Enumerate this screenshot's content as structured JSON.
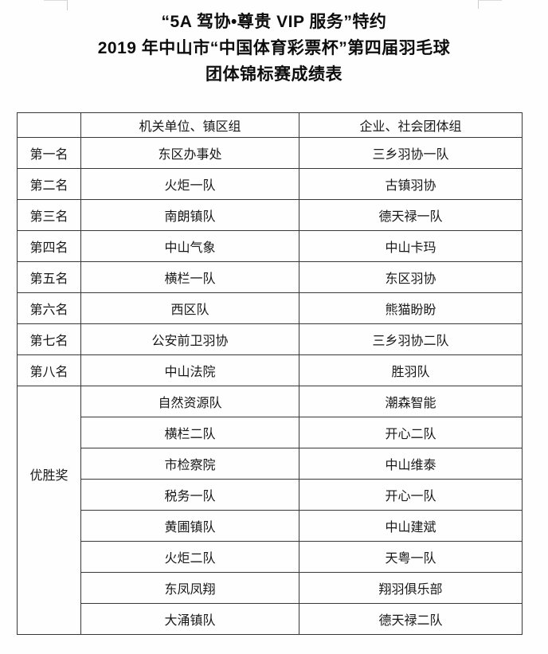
{
  "colors": {
    "page_background": "#fefefe",
    "title_text": "#0d0d0d",
    "table_text": "#181818",
    "table_border": "#383838",
    "corner_mark": "#cccccc"
  },
  "title": {
    "line1": "“5A 驾协•尊贵 VIP 服务”特约",
    "line2": "2019 年中山市“中国体育彩票杯”第四届羽毛球",
    "line3": "团体锦标赛成绩表"
  },
  "table": {
    "headers": [
      "",
      "机关单位、镇区组",
      "企业、社会团体组"
    ],
    "ranked_rows": [
      {
        "rank": "第一名",
        "gov": "东区办事处",
        "ent": "三乡羽协一队"
      },
      {
        "rank": "第二名",
        "gov": "火炬一队",
        "ent": "古镇羽协"
      },
      {
        "rank": "第三名",
        "gov": "南朗镇队",
        "ent": "德天禄一队"
      },
      {
        "rank": "第四名",
        "gov": "中山气象",
        "ent": "中山卡玛"
      },
      {
        "rank": "第五名",
        "gov": "横栏一队",
        "ent": "东区羽协"
      },
      {
        "rank": "第六名",
        "gov": "西区队",
        "ent": "熊猫盼盼"
      },
      {
        "rank": "第七名",
        "gov": "公安前卫羽协",
        "ent": "三乡羽协二队"
      },
      {
        "rank": "第八名",
        "gov": "中山法院",
        "ent": "胜羽队"
      }
    ],
    "winner_label": "优胜奖",
    "winner_rows": [
      {
        "gov": "自然资源队",
        "ent": "潮森智能"
      },
      {
        "gov": "横栏二队",
        "ent": "开心二队"
      },
      {
        "gov": "市检察院",
        "ent": "中山维泰"
      },
      {
        "gov": "税务一队",
        "ent": "开心一队"
      },
      {
        "gov": "黄圃镇队",
        "ent": "中山建斌"
      },
      {
        "gov": "火炬二队",
        "ent": "天粤一队"
      },
      {
        "gov": "东凤凤翔",
        "ent": "翔羽俱乐部"
      },
      {
        "gov": "大涌镇队",
        "ent": "德天禄二队"
      }
    ]
  }
}
